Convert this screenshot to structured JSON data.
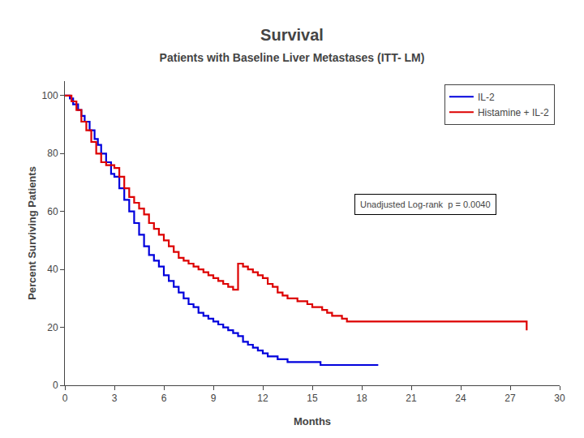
{
  "chart_data": {
    "type": "step",
    "title": "Survival",
    "subtitle": "Patients with Baseline Liver Metastases (ITT- LM)",
    "xlabel": "Months",
    "ylabel": "Percent Surviving Patients",
    "xlim": [
      0,
      30
    ],
    "ylim": [
      0,
      105
    ],
    "xticks": [
      0,
      3,
      6,
      9,
      12,
      15,
      18,
      21,
      24,
      27,
      30
    ],
    "yticks": [
      0,
      20,
      40,
      60,
      80,
      100
    ],
    "grid": false,
    "legend": "upper right",
    "annotation": "Unadjusted Log-rank  p = 0.0040",
    "series": [
      {
        "name": "IL-2",
        "color": "#0000dd",
        "x": [
          0,
          0.3,
          0.5,
          0.8,
          1.0,
          1.2,
          1.5,
          1.8,
          2.0,
          2.2,
          2.5,
          2.8,
          3.0,
          3.3,
          3.6,
          3.9,
          4.2,
          4.5,
          4.8,
          5.1,
          5.4,
          5.7,
          6.0,
          6.3,
          6.6,
          6.9,
          7.2,
          7.5,
          7.8,
          8.1,
          8.4,
          8.7,
          9.0,
          9.3,
          9.6,
          9.9,
          10.2,
          10.5,
          10.8,
          11.1,
          11.4,
          11.7,
          12.0,
          12.3,
          12.6,
          12.9,
          13.2,
          13.5,
          14.0,
          14.5,
          15.0,
          15.5,
          16.0,
          16.5,
          17.0,
          17.5,
          18.0,
          18.5,
          19.0
        ],
        "values": [
          100,
          99,
          97,
          95,
          93,
          91,
          88,
          85,
          83,
          80,
          77,
          73,
          72,
          68,
          64,
          60,
          56,
          52,
          48,
          45,
          43,
          41,
          38,
          36,
          34,
          32,
          30,
          28,
          27,
          25,
          24,
          23,
          22,
          21,
          20,
          19,
          18,
          17,
          15,
          14,
          13,
          12,
          11,
          10,
          10,
          9,
          9,
          8,
          8,
          8,
          8,
          7,
          7,
          7,
          7,
          7,
          7,
          7,
          7
        ]
      },
      {
        "name": "Histamine + IL-2",
        "color": "#dd0000",
        "x": [
          0,
          0.4,
          0.7,
          1.0,
          1.3,
          1.6,
          1.9,
          2.2,
          2.5,
          2.8,
          3.0,
          3.3,
          3.6,
          3.9,
          4.2,
          4.5,
          4.8,
          5.1,
          5.4,
          5.7,
          6.0,
          6.3,
          6.6,
          6.9,
          7.2,
          7.5,
          7.8,
          8.1,
          8.4,
          8.7,
          9.0,
          9.3,
          9.6,
          9.9,
          10.2,
          10.5,
          10.8,
          11.1,
          11.4,
          11.7,
          12.0,
          12.3,
          12.6,
          12.9,
          13.2,
          13.5,
          13.8,
          14.1,
          14.4,
          14.7,
          15.0,
          15.3,
          15.6,
          15.9,
          16.2,
          16.5,
          16.8,
          17.1,
          17.4,
          17.7,
          18.0,
          18.5,
          19.0,
          19.5,
          20.0,
          22.0,
          27.0,
          28.0
        ],
        "values": [
          100,
          98,
          95,
          91,
          88,
          84,
          80,
          77,
          76,
          76,
          75,
          72,
          68,
          65,
          63,
          61,
          59,
          56,
          54,
          52,
          50,
          48,
          46,
          44,
          43,
          42,
          41,
          40,
          39,
          38,
          37,
          36,
          35,
          34,
          33,
          42,
          41,
          40,
          39,
          38,
          37,
          35,
          34,
          32,
          31,
          30,
          30,
          29,
          29,
          28,
          27,
          27,
          26,
          25,
          24,
          24,
          23,
          22,
          22,
          22,
          22,
          22,
          22,
          22,
          22,
          22,
          22,
          19
        ]
      }
    ]
  }
}
